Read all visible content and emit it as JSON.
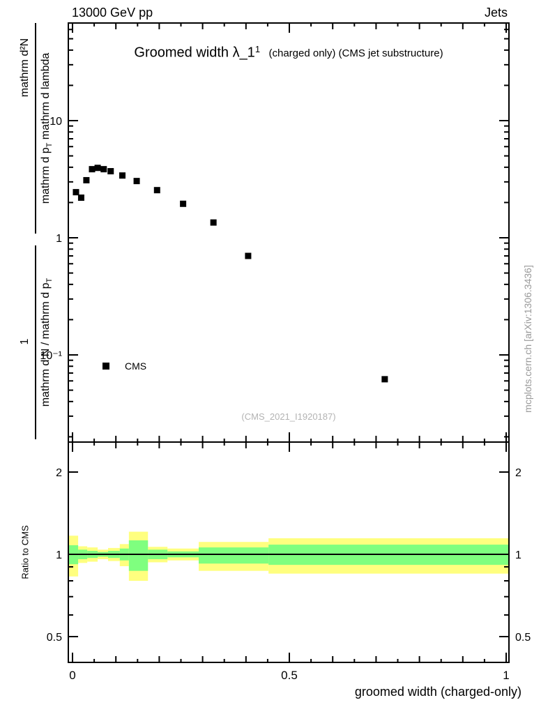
{
  "header": {
    "left": "13000 GeV pp",
    "right": "Jets"
  },
  "title": {
    "main": "Groomed width λ_1",
    "superscript": "1",
    "details": "(charged only) (CMS jet substructure)"
  },
  "y_axis_label": {
    "upper_numerator": "mathrm d²N",
    "upper_denominator_pre": "mathrm d p",
    "upper_denominator_sub": "T",
    "upper_denominator_post": " mathrm d lambda",
    "lower_numerator": "1",
    "lower_denominator_pre": "mathrm d N / mathrm d p",
    "lower_denominator_sub": "T"
  },
  "ratio_axis_label": "Ratio to CMS",
  "x_axis_title": "groomed width (charged-only)",
  "legend": {
    "marker": "filled-square",
    "color": "#000000",
    "label": "CMS"
  },
  "watermark": "(CMS_2021_I1920187)",
  "credit": "mcplots.cern.ch [arXiv:1306.3436]",
  "chart_data": {
    "type": "scatter",
    "title": "Groomed width λ_1^1 (charged only) (CMS jet substructure)",
    "xlabel": "groomed width (charged-only)",
    "ylabel": "1/(mathrm dN/mathrm dp_T) mathrm d²N/(mathrm dp_T mathrm dλ)",
    "grid": false,
    "legend_position": "inside-left",
    "x_range": [
      0,
      1
    ],
    "y_scale": "log",
    "y_range": [
      0.018,
      68
    ],
    "x_ticks_major": [
      0,
      0.5,
      1
    ],
    "x_tick_labels": [
      "0",
      "0.5",
      "1"
    ],
    "x_minor_step": 0.05,
    "y_ticks": [
      {
        "value": 10,
        "label": "10"
      },
      {
        "value": 1,
        "label": "1"
      },
      {
        "value": 0.1,
        "label": "10⁻¹"
      }
    ],
    "series": [
      {
        "name": "CMS",
        "marker": "filled-square",
        "color": "#000000",
        "points": [
          [
            0.008,
            2.45
          ],
          [
            0.02,
            2.2
          ],
          [
            0.032,
            3.1
          ],
          [
            0.045,
            3.85
          ],
          [
            0.058,
            3.95
          ],
          [
            0.072,
            3.85
          ],
          [
            0.088,
            3.7
          ],
          [
            0.115,
            3.4
          ],
          [
            0.148,
            3.05
          ],
          [
            0.195,
            2.55
          ],
          [
            0.255,
            1.95
          ],
          [
            0.325,
            1.35
          ],
          [
            0.405,
            0.7
          ],
          [
            0.72,
            0.062
          ]
        ]
      }
    ],
    "ratio": {
      "label": "Ratio to CMS",
      "y_scale": "log",
      "y_range": [
        0.41,
        2.56
      ],
      "ticks": [
        {
          "value": 2,
          "label": "2"
        },
        {
          "value": 1,
          "label": "1"
        },
        {
          "value": 0.5,
          "label": "0.5"
        }
      ],
      "reference_value": 1,
      "band_colors": {
        "outer": "#ffff7f",
        "inner": "#7fff7f"
      },
      "bins": [
        {
          "x": [
            0,
            0.013
          ],
          "outer": [
            0.83,
            1.17
          ],
          "inner": [
            0.92,
            1.08
          ]
        },
        {
          "x": [
            0.013,
            0.034
          ],
          "outer": [
            0.93,
            1.07
          ],
          "inner": [
            0.96,
            1.04
          ]
        },
        {
          "x": [
            0.034,
            0.058
          ],
          "outer": [
            0.94,
            1.06
          ],
          "inner": [
            0.97,
            1.03
          ]
        },
        {
          "x": [
            0.058,
            0.082
          ],
          "outer": [
            0.96,
            1.04
          ],
          "inner": [
            0.98,
            1.02
          ]
        },
        {
          "x": [
            0.082,
            0.109
          ],
          "outer": [
            0.945,
            1.055
          ],
          "inner": [
            0.97,
            1.03
          ]
        },
        {
          "x": [
            0.109,
            0.13
          ],
          "outer": [
            0.905,
            1.09
          ],
          "inner": [
            0.95,
            1.05
          ]
        },
        {
          "x": [
            0.13,
            0.174
          ],
          "outer": [
            0.8,
            1.21
          ],
          "inner": [
            0.87,
            1.125
          ]
        },
        {
          "x": [
            0.174,
            0.219
          ],
          "outer": [
            0.935,
            1.065
          ],
          "inner": [
            0.96,
            1.04
          ]
        },
        {
          "x": [
            0.219,
            0.291
          ],
          "outer": [
            0.95,
            1.05
          ],
          "inner": [
            0.975,
            1.025
          ]
        },
        {
          "x": [
            0.291,
            0.452
          ],
          "outer": [
            0.87,
            1.11
          ],
          "inner": [
            0.925,
            1.06
          ]
        },
        {
          "x": [
            0.452,
            1.0
          ],
          "outer": [
            0.85,
            1.145
          ],
          "inner": [
            0.915,
            1.085
          ]
        }
      ]
    }
  }
}
